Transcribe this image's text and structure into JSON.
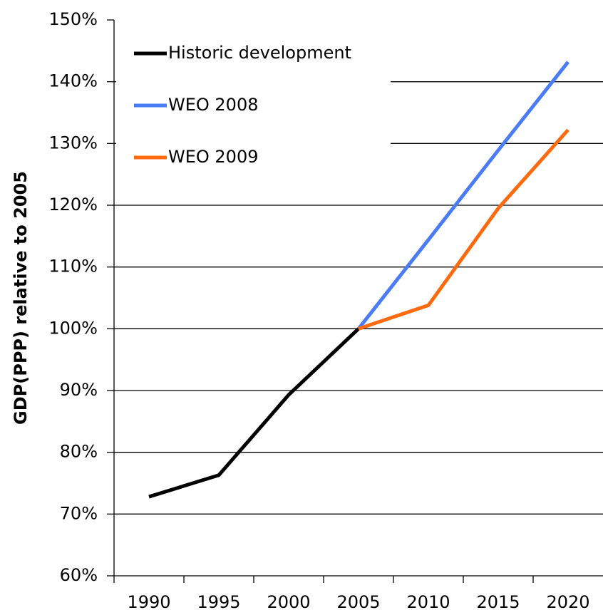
{
  "chart_data": {
    "type": "line",
    "y_label": "GDP(PPP) relative to 2005",
    "categories": [
      "1990",
      "1995",
      "2000",
      "2005",
      "2010",
      "2015",
      "2020"
    ],
    "series": [
      {
        "name": "Historic development",
        "color": "#000000",
        "values": [
          72.8,
          76.3,
          89.3,
          100,
          null,
          null,
          null
        ]
      },
      {
        "name": "WEO 2008",
        "color": "#4a7cf7",
        "values": [
          null,
          null,
          null,
          100,
          114.4,
          128.9,
          143.2
        ]
      },
      {
        "name": "WEO 2009",
        "color": "#ff6a0f",
        "values": [
          null,
          null,
          null,
          100,
          103.8,
          119.5,
          132.2
        ]
      }
    ],
    "ylim": [
      60,
      150
    ],
    "yticks": [
      {
        "value": 60,
        "label": "60%"
      },
      {
        "value": 70,
        "label": "70%"
      },
      {
        "value": 80,
        "label": "80%"
      },
      {
        "value": 90,
        "label": "90%"
      },
      {
        "value": 100,
        "label": "100%"
      },
      {
        "value": 110,
        "label": "110%"
      },
      {
        "value": 120,
        "label": "120%"
      },
      {
        "value": 130,
        "label": "130%"
      },
      {
        "value": 140,
        "label": "140%"
      },
      {
        "value": 150,
        "label": "150%"
      }
    ],
    "grid": true,
    "legend": "upper left"
  }
}
